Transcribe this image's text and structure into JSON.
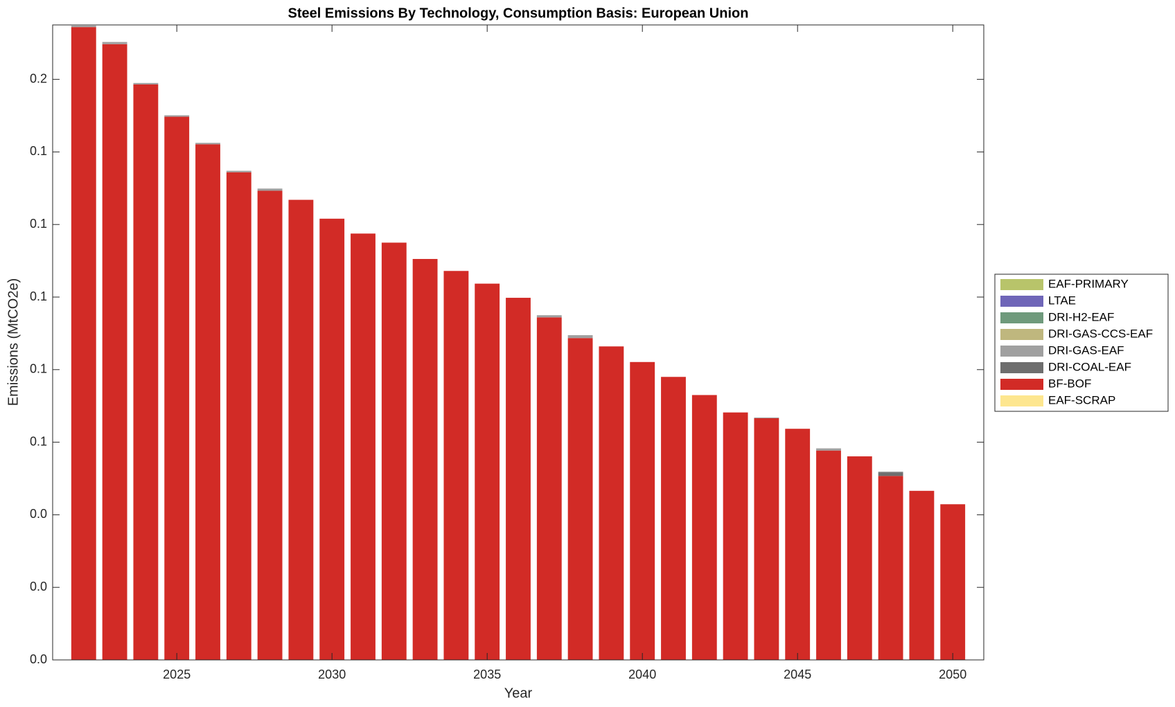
{
  "chart_data": {
    "type": "bar",
    "stacked": true,
    "title": "Steel Emissions By Technology, Consumption Basis: European Union",
    "xlabel": "Year",
    "ylabel": "Emissions (MtCO2e)",
    "x": [
      2022,
      2023,
      2024,
      2025,
      2026,
      2027,
      2028,
      2029,
      2030,
      2031,
      2032,
      2033,
      2034,
      2035,
      2036,
      2037,
      2038,
      2039,
      2040,
      2041,
      2042,
      2043,
      2044,
      2045,
      2046,
      2047,
      2048,
      2049,
      2050
    ],
    "xlim": [
      2021,
      2051
    ],
    "xticks": [
      2025,
      2030,
      2035,
      2040,
      2045,
      2050
    ],
    "ylim": [
      0,
      0.175
    ],
    "yticks": [
      {
        "value": 0,
        "label": "0.0"
      },
      {
        "value": 0.02,
        "label": "0.0"
      },
      {
        "value": 0.04,
        "label": "0.0"
      },
      {
        "value": 0.06,
        "label": "0.1"
      },
      {
        "value": 0.08,
        "label": "0.1"
      },
      {
        "value": 0.1,
        "label": "0.1"
      },
      {
        "value": 0.12,
        "label": "0.1"
      },
      {
        "value": 0.14,
        "label": "0.1"
      },
      {
        "value": 0.16,
        "label": "0.2"
      }
    ],
    "legend": "outside-right",
    "series": [
      {
        "name": "EAF-PRIMARY",
        "color": "#b8c46a",
        "values": [
          0,
          0,
          0,
          0,
          0,
          0,
          0,
          0,
          0,
          0,
          0,
          0,
          0,
          0,
          0,
          0,
          0,
          0,
          0,
          0,
          0,
          0,
          0,
          0,
          0,
          0,
          0,
          0,
          0
        ]
      },
      {
        "name": "LTAE",
        "color": "#6f66b8",
        "values": [
          0,
          0,
          0,
          0,
          0,
          0,
          0,
          0,
          0,
          0,
          0,
          0,
          0,
          0,
          0,
          0,
          0,
          0,
          0,
          0,
          0,
          0,
          0,
          0,
          0,
          0,
          0,
          0,
          0
        ]
      },
      {
        "name": "DRI-H2-EAF",
        "color": "#6f9a7c",
        "values": [
          0,
          0,
          0,
          0,
          0,
          0,
          0,
          0,
          0,
          0,
          0,
          0,
          0,
          0,
          0,
          0,
          0,
          0,
          0,
          0,
          0,
          0,
          0,
          0,
          0,
          0,
          0,
          0,
          0
        ]
      },
      {
        "name": "DRI-GAS-CCS-EAF",
        "color": "#bfb77e",
        "values": [
          0,
          0,
          0,
          0,
          0,
          0,
          0,
          0,
          0,
          0,
          0,
          0,
          0,
          0,
          0,
          0,
          0,
          0,
          0,
          0,
          0,
          0,
          0,
          0,
          0,
          0,
          0,
          0,
          0
        ]
      },
      {
        "name": "DRI-GAS-EAF",
        "color": "#a0a0a0",
        "values": [
          0.0004,
          0.0006,
          0.0004,
          0.0004,
          0.0004,
          0.0004,
          0.0006,
          0,
          0,
          0,
          0,
          0,
          0,
          0,
          0,
          0.0006,
          0.0008,
          0,
          0,
          0,
          0,
          0,
          0.0002,
          0,
          0.0006,
          0,
          0.0002,
          0,
          0
        ]
      },
      {
        "name": "DRI-COAL-EAF",
        "color": "#6e6e6e",
        "values": [
          0,
          0,
          0,
          0,
          0,
          0,
          0,
          0,
          0,
          0,
          0,
          0,
          0,
          0,
          0,
          0,
          0,
          0,
          0,
          0,
          0,
          0,
          0,
          0,
          0,
          0,
          0.001,
          0,
          0
        ]
      },
      {
        "name": "BF-BOF",
        "color": "#d22b26",
        "values": [
          0.1744,
          0.1697,
          0.1586,
          0.1497,
          0.1421,
          0.1344,
          0.1293,
          0.1268,
          0.1216,
          0.1175,
          0.115,
          0.1105,
          0.1072,
          0.1037,
          0.0998,
          0.0944,
          0.0887,
          0.0864,
          0.0821,
          0.078,
          0.073,
          0.0682,
          0.0666,
          0.0637,
          0.0577,
          0.0561,
          0.0507,
          0.0466,
          0.0429
        ]
      },
      {
        "name": "EAF-SCRAP",
        "color": "#fde68f",
        "values": [
          0,
          0,
          0,
          0,
          0,
          0,
          0,
          0,
          0,
          0,
          0,
          0,
          0,
          0,
          0,
          0,
          0,
          0,
          0,
          0,
          0,
          0,
          0,
          0,
          0,
          0,
          0,
          0,
          0
        ]
      }
    ]
  }
}
